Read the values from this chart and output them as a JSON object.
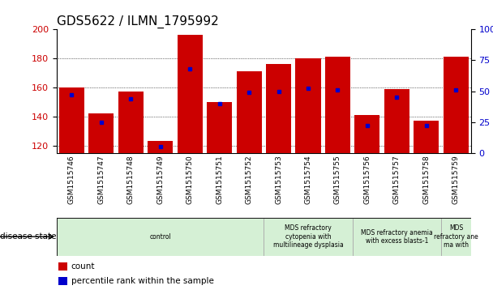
{
  "title": "GDS5622 / ILMN_1795992",
  "samples": [
    "GSM1515746",
    "GSM1515747",
    "GSM1515748",
    "GSM1515749",
    "GSM1515750",
    "GSM1515751",
    "GSM1515752",
    "GSM1515753",
    "GSM1515754",
    "GSM1515755",
    "GSM1515756",
    "GSM1515757",
    "GSM1515758",
    "GSM1515759"
  ],
  "count_values": [
    160,
    142,
    157,
    123,
    196,
    150,
    171,
    176,
    180,
    181,
    141,
    159,
    137,
    181
  ],
  "percentile_values": [
    47,
    25,
    44,
    5,
    68,
    40,
    49,
    50,
    52,
    51,
    22,
    45,
    22,
    51
  ],
  "ylim_left": [
    115,
    200
  ],
  "ylim_right": [
    0,
    100
  ],
  "yticks_left": [
    120,
    140,
    160,
    180,
    200
  ],
  "yticks_right": [
    0,
    25,
    50,
    75,
    100
  ],
  "bar_color": "#cc0000",
  "dot_color": "#0000cc",
  "background_color": "#ffffff",
  "cell_bg": "#d0d0d0",
  "cell_border": "#ffffff",
  "disease_bg": "#d5f0d5",
  "disease_border": "#aaaaaa",
  "disease_groups": [
    {
      "label": "control",
      "start": 0,
      "end": 7
    },
    {
      "label": "MDS refractory\ncytopenia with\nmultilineage dysplasia",
      "start": 7,
      "end": 10
    },
    {
      "label": "MDS refractory anemia\nwith excess blasts-1",
      "start": 10,
      "end": 13
    },
    {
      "label": "MDS\nrefractory ane\nma with",
      "start": 13,
      "end": 14
    }
  ],
  "legend_count_label": "count",
  "legend_pct_label": "percentile rank within the sample",
  "disease_state_label": "disease state"
}
